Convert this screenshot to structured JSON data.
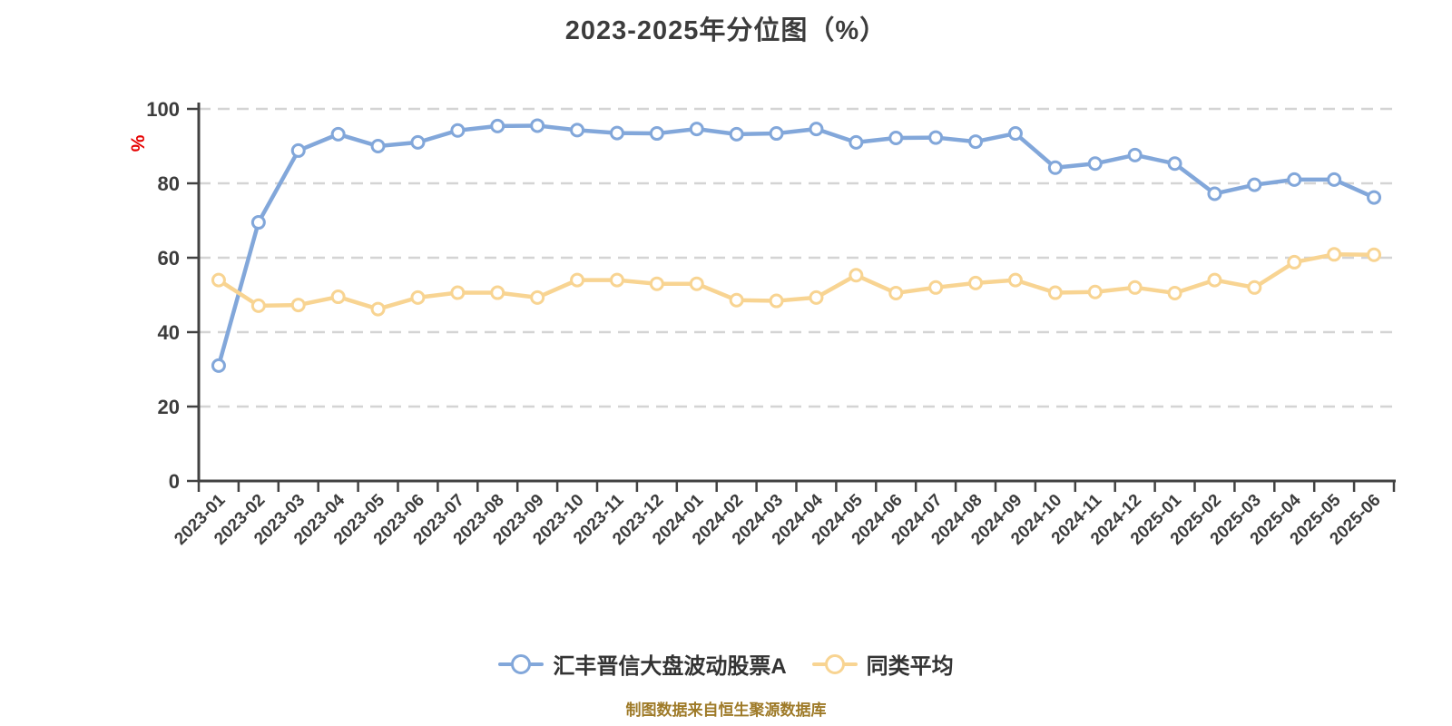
{
  "title": "2023-2025年分位图（%）",
  "y_axis": {
    "unit": "%",
    "tick_labels": [
      "0",
      "20",
      "40",
      "60",
      "80",
      "100"
    ],
    "ticks": [
      0,
      20,
      40,
      60,
      80,
      100
    ]
  },
  "legend": [
    {
      "label": "汇丰晋信大盘波动股票A",
      "color": "#82a7da"
    },
    {
      "label": "同类平均",
      "color": "#f8d492"
    }
  ],
  "footer": "制图数据来自恒生聚源数据库",
  "colors": {
    "fund_line": "#82a7da",
    "average_line": "#f8d492",
    "grid": "#d4d4d4",
    "axis": "#424242",
    "text": "#3c3c3c",
    "unit_label": "#e60000",
    "footer_text": "#9e7a28",
    "marker_fill": "#ffffff"
  },
  "chart_data": {
    "type": "line",
    "title": "2023-2025年分位图（%）",
    "xlabel": "",
    "ylabel": "%",
    "ylim": [
      0,
      100
    ],
    "y_ticks": [
      0,
      20,
      40,
      60,
      80,
      100
    ],
    "grid": "horizontal dashed",
    "legend_position": "bottom",
    "x": [
      "2023-01",
      "2023-02",
      "2023-03",
      "2023-04",
      "2023-05",
      "2023-06",
      "2023-07",
      "2023-08",
      "2023-09",
      "2023-10",
      "2023-11",
      "2023-12",
      "2024-01",
      "2024-02",
      "2024-03",
      "2024-04",
      "2024-05",
      "2024-06",
      "2024-07",
      "2024-08",
      "2024-09",
      "2024-10",
      "2024-11",
      "2024-12",
      "2025-01",
      "2025-02",
      "2025-03",
      "2025-04",
      "2025-05",
      "2025-06"
    ],
    "series": [
      {
        "name": "汇丰晋信大盘波动股票A",
        "color": "#82a7da",
        "values": [
          31,
          69.5,
          88.8,
          93.2,
          90,
          91,
          94.2,
          95.4,
          95.5,
          94.3,
          93.5,
          93.4,
          94.6,
          93.2,
          93.4,
          94.6,
          91,
          92.2,
          92.3,
          91.2,
          93.4,
          84.2,
          85.3,
          87.6,
          85.3,
          77.2,
          79.6,
          81,
          81,
          76.2
        ]
      },
      {
        "name": "同类平均",
        "color": "#f8d492",
        "values": [
          54,
          47.1,
          47.3,
          49.5,
          46.2,
          49.3,
          50.6,
          50.6,
          49.3,
          54,
          54,
          53,
          53,
          48.6,
          48.4,
          49.3,
          55.3,
          50.5,
          52,
          53.2,
          54,
          50.6,
          50.8,
          52,
          50.5,
          54,
          52,
          58.8,
          60.9,
          60.8
        ]
      }
    ]
  }
}
